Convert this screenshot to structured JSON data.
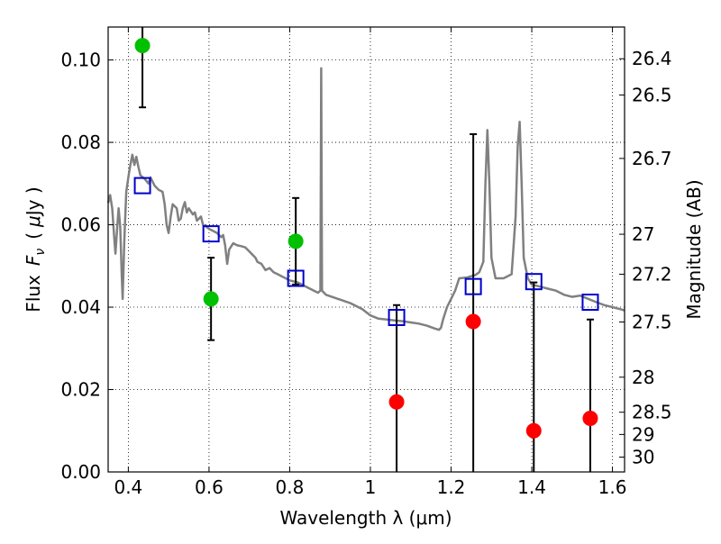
{
  "chart_data": {
    "type": "scatter",
    "xlabel": "Wavelength  λ (μm)",
    "ylabel_main": "Flux",
    "ylabel_symbol": "F",
    "ylabel_sub": "ν",
    "ylabel_unit_open": "(",
    "ylabel_unit_mu": "μ",
    "ylabel_unit_rest": "Jy )",
    "ylabel_right": "Magnitude (AB)",
    "xlim": [
      0.35,
      1.63
    ],
    "ylim": [
      0.0,
      0.108
    ],
    "grid": true,
    "x_ticks": [
      0.4,
      0.6,
      0.8,
      1.0,
      1.2,
      1.4,
      1.6
    ],
    "x_tick_labels": [
      "0.4",
      "0.6",
      "0.8",
      "1",
      "1.2",
      "1.4",
      "1.6"
    ],
    "y_ticks": [
      0.0,
      0.02,
      0.04,
      0.06,
      0.08,
      0.1
    ],
    "y_tick_labels": [
      "0.00",
      "0.02",
      "0.04",
      "0.06",
      "0.08",
      "0.10"
    ],
    "mag_ticks": [
      {
        "label": "26.4",
        "flux": 0.1003
      },
      {
        "label": "26.5",
        "flux": 0.0915
      },
      {
        "label": "26.7",
        "flux": 0.0761
      },
      {
        "label": "27",
        "flux": 0.0577
      },
      {
        "label": "27.2",
        "flux": 0.048
      },
      {
        "label": "27.5",
        "flux": 0.0364
      },
      {
        "label": "28",
        "flux": 0.023
      },
      {
        "label": "28.5",
        "flux": 0.0145
      },
      {
        "label": "29",
        "flux": 0.0091
      },
      {
        "label": "30",
        "flux": 0.0036
      }
    ],
    "spectrum": {
      "color": "#808080",
      "points": [
        [
          0.35,
          0.0653
        ],
        [
          0.355,
          0.0672
        ],
        [
          0.36,
          0.064
        ],
        [
          0.365,
          0.057
        ],
        [
          0.368,
          0.053
        ],
        [
          0.372,
          0.0585
        ],
        [
          0.376,
          0.064
        ],
        [
          0.38,
          0.0595
        ],
        [
          0.384,
          0.047
        ],
        [
          0.386,
          0.042
        ],
        [
          0.39,
          0.056
        ],
        [
          0.395,
          0.068
        ],
        [
          0.4,
          0.0715
        ],
        [
          0.405,
          0.0745
        ],
        [
          0.41,
          0.077
        ],
        [
          0.415,
          0.0745
        ],
        [
          0.42,
          0.0765
        ],
        [
          0.425,
          0.074
        ],
        [
          0.43,
          0.072
        ],
        [
          0.44,
          0.0712
        ],
        [
          0.45,
          0.07
        ],
        [
          0.455,
          0.0715
        ],
        [
          0.465,
          0.0695
        ],
        [
          0.475,
          0.0685
        ],
        [
          0.485,
          0.068
        ],
        [
          0.49,
          0.065
        ],
        [
          0.495,
          0.06
        ],
        [
          0.5,
          0.058
        ],
        [
          0.505,
          0.062
        ],
        [
          0.51,
          0.065
        ],
        [
          0.52,
          0.064
        ],
        [
          0.525,
          0.061
        ],
        [
          0.53,
          0.0615
        ],
        [
          0.535,
          0.064
        ],
        [
          0.54,
          0.0655
        ],
        [
          0.545,
          0.063
        ],
        [
          0.55,
          0.064
        ],
        [
          0.56,
          0.0625
        ],
        [
          0.565,
          0.063
        ],
        [
          0.57,
          0.061
        ],
        [
          0.58,
          0.062
        ],
        [
          0.585,
          0.06
        ],
        [
          0.59,
          0.0598
        ],
        [
          0.6,
          0.059
        ],
        [
          0.61,
          0.0585
        ],
        [
          0.62,
          0.058
        ],
        [
          0.63,
          0.057
        ],
        [
          0.635,
          0.0575
        ],
        [
          0.64,
          0.055
        ],
        [
          0.645,
          0.0505
        ],
        [
          0.65,
          0.054
        ],
        [
          0.66,
          0.0555
        ],
        [
          0.67,
          0.055
        ],
        [
          0.68,
          0.0548
        ],
        [
          0.69,
          0.0545
        ],
        [
          0.7,
          0.0535
        ],
        [
          0.71,
          0.0525
        ],
        [
          0.715,
          0.052
        ],
        [
          0.72,
          0.051
        ],
        [
          0.73,
          0.0505
        ],
        [
          0.74,
          0.049
        ],
        [
          0.75,
          0.0495
        ],
        [
          0.76,
          0.0485
        ],
        [
          0.77,
          0.048
        ],
        [
          0.78,
          0.0475
        ],
        [
          0.79,
          0.047
        ],
        [
          0.8,
          0.0465
        ],
        [
          0.82,
          0.046
        ],
        [
          0.84,
          0.045
        ],
        [
          0.86,
          0.044
        ],
        [
          0.87,
          0.0435
        ],
        [
          0.876,
          0.044
        ],
        [
          0.878,
          0.098
        ],
        [
          0.88,
          0.044
        ],
        [
          0.89,
          0.043
        ],
        [
          0.92,
          0.042
        ],
        [
          0.95,
          0.041
        ],
        [
          0.98,
          0.0395
        ],
        [
          1.0,
          0.038
        ],
        [
          1.02,
          0.0372
        ],
        [
          1.04,
          0.037
        ],
        [
          1.06,
          0.0368
        ],
        [
          1.08,
          0.0366
        ],
        [
          1.1,
          0.0363
        ],
        [
          1.12,
          0.036
        ],
        [
          1.14,
          0.0355
        ],
        [
          1.16,
          0.0348
        ],
        [
          1.17,
          0.0345
        ],
        [
          1.175,
          0.035
        ],
        [
          1.18,
          0.037
        ],
        [
          1.19,
          0.04
        ],
        [
          1.2,
          0.042
        ],
        [
          1.21,
          0.044
        ],
        [
          1.22,
          0.047
        ],
        [
          1.24,
          0.0472
        ],
        [
          1.25,
          0.0475
        ],
        [
          1.26,
          0.0478
        ],
        [
          1.27,
          0.0485
        ],
        [
          1.28,
          0.051
        ],
        [
          1.285,
          0.07
        ],
        [
          1.29,
          0.083
        ],
        [
          1.295,
          0.07
        ],
        [
          1.3,
          0.052
        ],
        [
          1.31,
          0.047
        ],
        [
          1.32,
          0.047
        ],
        [
          1.33,
          0.047
        ],
        [
          1.34,
          0.0475
        ],
        [
          1.35,
          0.048
        ],
        [
          1.36,
          0.062
        ],
        [
          1.365,
          0.079
        ],
        [
          1.37,
          0.085
        ],
        [
          1.375,
          0.07
        ],
        [
          1.38,
          0.052
        ],
        [
          1.39,
          0.047
        ],
        [
          1.4,
          0.0455
        ],
        [
          1.42,
          0.045
        ],
        [
          1.44,
          0.0445
        ],
        [
          1.46,
          0.044
        ],
        [
          1.48,
          0.043
        ],
        [
          1.5,
          0.0425
        ],
        [
          1.52,
          0.0428
        ],
        [
          1.54,
          0.042
        ],
        [
          1.56,
          0.0412
        ],
        [
          1.58,
          0.0405
        ],
        [
          1.6,
          0.04
        ],
        [
          1.62,
          0.0395
        ],
        [
          1.63,
          0.0392
        ]
      ]
    },
    "series": [
      {
        "color": "#00c000",
        "marker": "circle",
        "points": [
          {
            "x": 0.435,
            "y": 0.1035,
            "ylo": 0.0885,
            "yhi": 0.108
          },
          {
            "x": 0.605,
            "y": 0.042,
            "ylo": 0.032,
            "yhi": 0.052
          },
          {
            "x": 0.815,
            "y": 0.056,
            "ylo": 0.0455,
            "yhi": 0.0665
          }
        ]
      },
      {
        "color": "#ff0000",
        "marker": "circle",
        "points": [
          {
            "x": 1.065,
            "y": 0.017,
            "ylo": 0.0,
            "yhi": 0.0405
          },
          {
            "x": 1.255,
            "y": 0.0365,
            "ylo": 0.0,
            "yhi": 0.082
          },
          {
            "x": 1.405,
            "y": 0.01,
            "ylo": 0.0,
            "yhi": 0.046
          },
          {
            "x": 1.545,
            "y": 0.013,
            "ylo": 0.0,
            "yhi": 0.037
          }
        ]
      },
      {
        "color": "#0000cc",
        "marker": "open-square",
        "points": [
          {
            "x": 0.435,
            "y": 0.0695
          },
          {
            "x": 0.605,
            "y": 0.0578
          },
          {
            "x": 0.815,
            "y": 0.047
          },
          {
            "x": 1.065,
            "y": 0.0375
          },
          {
            "x": 1.255,
            "y": 0.045
          },
          {
            "x": 1.405,
            "y": 0.0462
          },
          {
            "x": 1.545,
            "y": 0.0412
          }
        ]
      }
    ]
  }
}
